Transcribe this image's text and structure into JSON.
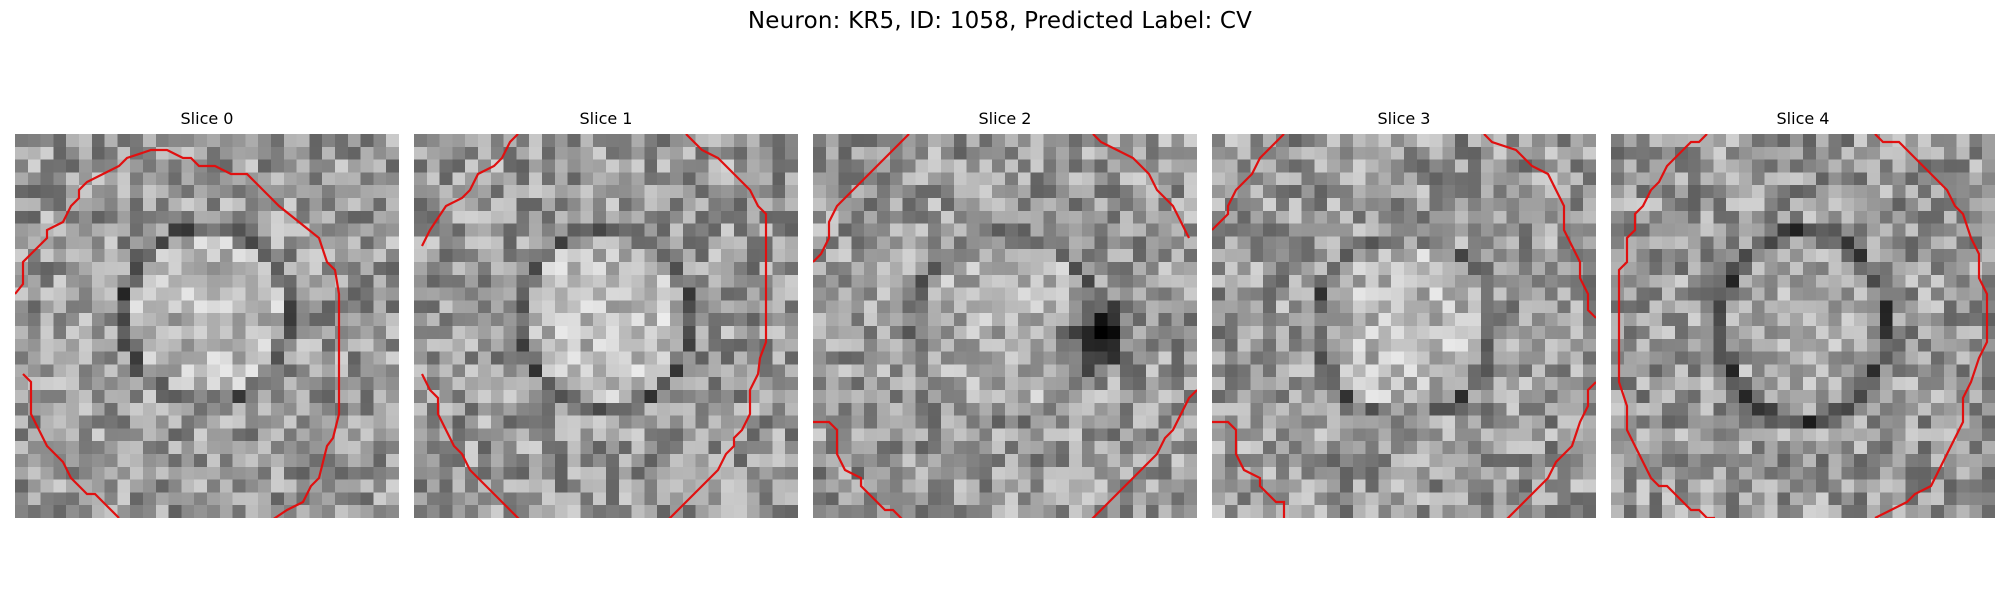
{
  "figure": {
    "title": "Neuron: KR5, ID: 1058, Predicted Label: CV"
  },
  "slices": [
    {
      "label": "Slice 0"
    },
    {
      "label": "Slice 1"
    },
    {
      "label": "Slice 2"
    },
    {
      "label": "Slice 3"
    },
    {
      "label": "Slice 4"
    }
  ],
  "colors": {
    "contour": "#e01010",
    "colormap": "gray"
  }
}
